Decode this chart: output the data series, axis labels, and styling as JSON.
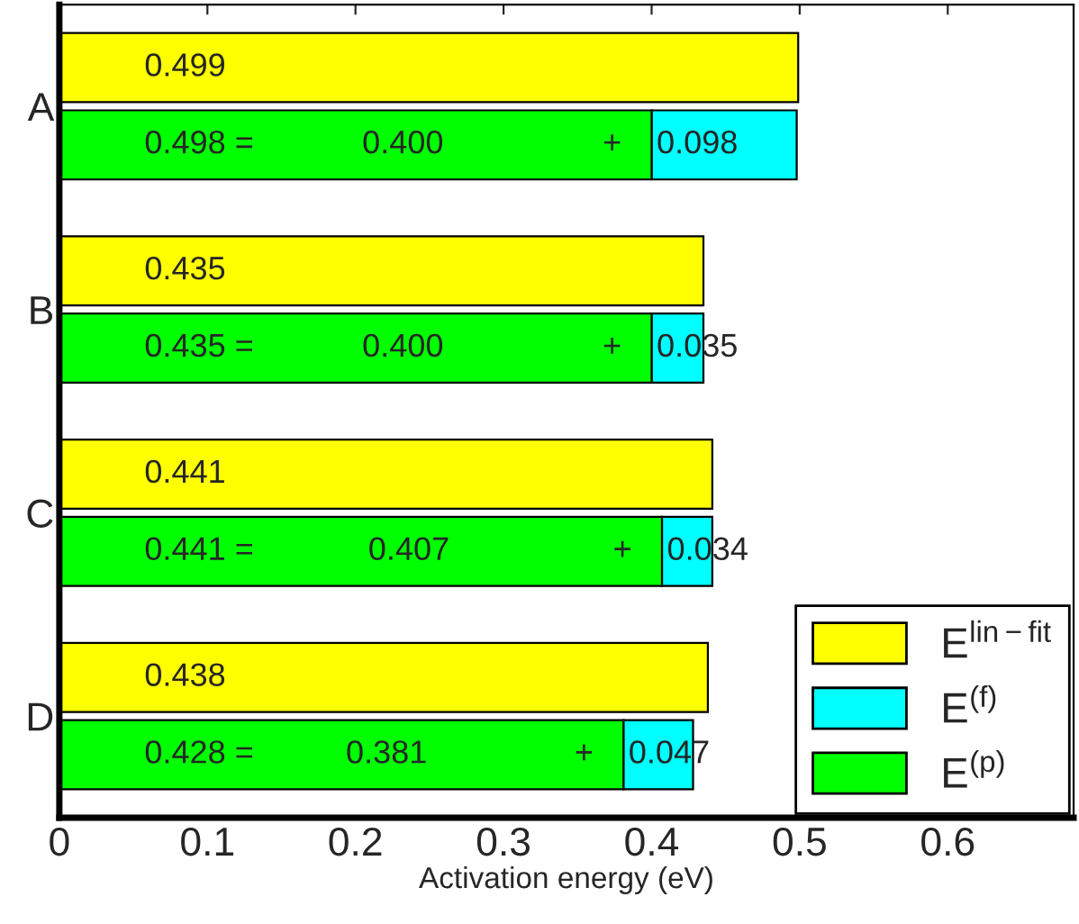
{
  "chart_data": {
    "type": "bar",
    "orientation": "horizontal",
    "xlabel": "Activation energy (eV)",
    "categories": [
      "A",
      "B",
      "C",
      "D"
    ],
    "series": [
      {
        "name": "E$^{lin−fit}$",
        "color": "#ffff00",
        "values": [
          0.499,
          0.435,
          0.441,
          0.438
        ],
        "value_labels": [
          "0.499",
          "0.435",
          "0.441",
          "0.438"
        ]
      },
      {
        "name": "E$^{(f)}$",
        "color": "#00ffff",
        "values": [
          0.098,
          0.035,
          0.034,
          0.047
        ],
        "base": [
          0.4,
          0.4,
          0.407,
          0.381
        ],
        "value_labels": [
          "0.098",
          "0.035",
          "0.034",
          "0.047"
        ]
      },
      {
        "name": "E$^{(p)}$",
        "color": "#00ff00",
        "values": [
          0.4,
          0.4,
          0.407,
          0.381
        ],
        "value_labels": [
          "0.400",
          "0.400",
          "0.407",
          "0.381"
        ]
      }
    ],
    "annotations": [
      "0.498 =",
      "0.435 =",
      "0.441 =",
      "0.428 =",
      {
        "text": "+",
        "x": 0.4,
        "y": "A"
      },
      {
        "text": "+",
        "x": 0.4,
        "y": "B"
      },
      {
        "text": "+",
        "x": 0.407,
        "y": "C"
      },
      {
        "text": "+",
        "x": 0.381,
        "y": "D"
      }
    ],
    "xlim": [
      0,
      0.685
    ],
    "xticks": [
      0,
      0.1,
      0.2,
      0.3,
      0.4,
      0.5,
      0.6
    ],
    "grid": false,
    "legend": "bottom right"
  }
}
